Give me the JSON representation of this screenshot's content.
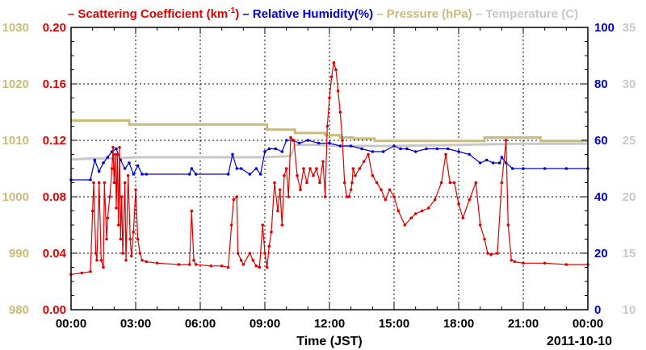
{
  "chart_data": {
    "type": "line",
    "legend": [
      {
        "text": "Scattering Coefficient (km",
        "sup": "-1",
        "tail": ")",
        "color": "#e00000"
      },
      {
        "text": "Relative Humidity(%)",
        "color": "#0000d0"
      },
      {
        "text": "Pressure (hPa)",
        "color": "#c8bc78"
      },
      {
        "text": "Temperature (C)",
        "color": "#c8c8c8"
      }
    ],
    "xlabel": "Time (JST)",
    "date_label": "2011-10-10",
    "x_ticks": [
      "00:00",
      "03:00",
      "06:00",
      "09:00",
      "12:00",
      "15:00",
      "18:00",
      "21:00",
      "00:00"
    ],
    "xlim_hours": [
      0,
      24
    ],
    "axes": {
      "pressure": {
        "ticks": [
          "980",
          "990",
          "1000",
          "1010",
          "1020",
          "1030"
        ],
        "lim": [
          980,
          1030
        ],
        "color": "#c8bc78"
      },
      "scattering": {
        "ticks": [
          "0.00",
          "0.04",
          "0.08",
          "0.12",
          "0.16",
          "0.20"
        ],
        "lim": [
          0,
          0.2
        ],
        "color": "#e00000"
      },
      "humidity": {
        "ticks": [
          "0",
          "20",
          "40",
          "60",
          "80",
          "100"
        ],
        "lim": [
          0,
          100
        ],
        "color": "#0000d0"
      },
      "temperature": {
        "ticks": [
          "10",
          "15",
          "20",
          "25",
          "30",
          "35"
        ],
        "lim": [
          10,
          35
        ],
        "color": "#c8c8c8"
      }
    },
    "series": [
      {
        "name": "Scattering Coefficient",
        "axis": "scattering",
        "color": "#e00000",
        "markers": true,
        "x": [
          0,
          0.5,
          0.9,
          1.0,
          1.05,
          1.15,
          1.2,
          1.3,
          1.4,
          1.5,
          1.55,
          1.65,
          1.7,
          1.8,
          1.9,
          1.95,
          2.0,
          2.05,
          2.1,
          2.15,
          2.2,
          2.25,
          2.3,
          2.35,
          2.4,
          2.5,
          2.55,
          2.65,
          2.75,
          2.8,
          2.9,
          3.0,
          3.1,
          3.2,
          3.3,
          3.5,
          4.0,
          5.0,
          5.5,
          5.6,
          5.7,
          5.8,
          6.5,
          7.0,
          7.3,
          7.45,
          7.55,
          7.7,
          7.75,
          7.9,
          8.0,
          8.3,
          8.45,
          8.6,
          8.75,
          8.9,
          9.0,
          9.1,
          9.2,
          9.3,
          9.45,
          9.6,
          9.7,
          9.8,
          9.9,
          10.0,
          10.1,
          10.2,
          10.35,
          10.5,
          10.65,
          10.8,
          10.95,
          11.1,
          11.25,
          11.4,
          11.55,
          11.7,
          11.8,
          11.9,
          12.0,
          12.1,
          12.2,
          12.3,
          12.4,
          12.5,
          12.6,
          12.7,
          12.8,
          12.9,
          13.0,
          13.05,
          13.1,
          13.2,
          13.4,
          13.6,
          13.8,
          14.0,
          14.2,
          14.4,
          14.6,
          14.8,
          15.0,
          15.2,
          15.5,
          15.8,
          16.0,
          16.3,
          16.6,
          16.9,
          17.2,
          17.4,
          17.6,
          17.8,
          18.0,
          18.2,
          18.5,
          18.8,
          19.0,
          19.2,
          19.35,
          19.5,
          19.8,
          20.0,
          20.2,
          20.3,
          20.45,
          20.6,
          21.0,
          22.0,
          23.0,
          24.0
        ],
        "values": [
          0.025,
          0.026,
          0.027,
          0.07,
          0.09,
          0.04,
          0.035,
          0.09,
          0.035,
          0.03,
          0.09,
          0.05,
          0.065,
          0.08,
          0.1,
          0.115,
          0.09,
          0.11,
          0.072,
          0.11,
          0.06,
          0.115,
          0.05,
          0.08,
          0.04,
          0.09,
          0.035,
          0.095,
          0.05,
          0.038,
          0.055,
          0.085,
          0.05,
          0.04,
          0.035,
          0.034,
          0.033,
          0.032,
          0.032,
          0.07,
          0.035,
          0.032,
          0.031,
          0.031,
          0.03,
          0.06,
          0.078,
          0.08,
          0.04,
          0.035,
          0.032,
          0.04,
          0.035,
          0.031,
          0.03,
          0.06,
          0.04,
          0.03,
          0.045,
          0.055,
          0.09,
          0.07,
          0.085,
          0.06,
          0.095,
          0.1,
          0.08,
          0.122,
          0.12,
          0.095,
          0.085,
          0.1,
          0.09,
          0.1,
          0.095,
          0.1,
          0.09,
          0.105,
          0.08,
          0.13,
          0.15,
          0.165,
          0.175,
          0.17,
          0.155,
          0.14,
          0.12,
          0.09,
          0.08,
          0.08,
          0.085,
          0.09,
          0.1,
          0.095,
          0.1,
          0.105,
          0.11,
          0.095,
          0.09,
          0.085,
          0.078,
          0.085,
          0.08,
          0.07,
          0.06,
          0.065,
          0.068,
          0.07,
          0.072,
          0.078,
          0.09,
          0.11,
          0.09,
          0.09,
          0.075,
          0.065,
          0.078,
          0.09,
          0.06,
          0.05,
          0.04,
          0.039,
          0.04,
          0.09,
          0.12,
          0.06,
          0.035,
          0.034,
          0.033,
          0.033,
          0.032,
          0.032
        ]
      },
      {
        "name": "Relative Humidity",
        "axis": "humidity",
        "color": "#0000d0",
        "markers": true,
        "x": [
          0,
          0.9,
          1.1,
          1.3,
          1.5,
          1.7,
          1.9,
          2.1,
          2.3,
          2.5,
          2.7,
          2.9,
          3.1,
          3.3,
          3.5,
          5.5,
          5.6,
          5.8,
          7.3,
          7.5,
          7.7,
          7.9,
          8.3,
          8.6,
          8.8,
          9.0,
          9.2,
          9.5,
          9.8,
          10.0,
          10.3,
          10.6,
          11.0,
          11.5,
          12.0,
          12.5,
          13.0,
          13.5,
          14.0,
          14.5,
          15.0,
          15.3,
          15.6,
          16.0,
          16.5,
          17.0,
          17.5,
          18.0,
          18.5,
          19.0,
          19.3,
          19.6,
          19.9,
          20.0,
          20.2,
          20.5,
          21.0,
          22.0,
          23.0,
          24.0
        ],
        "values": [
          46,
          46,
          53,
          49,
          52,
          54,
          56,
          57,
          53,
          50,
          52,
          48,
          51,
          48,
          48,
          48,
          50,
          48,
          48,
          55,
          50,
          50,
          48,
          50,
          48,
          56,
          57,
          57,
          56,
          60,
          60,
          59,
          60,
          59,
          59,
          58,
          58,
          57,
          56,
          56,
          58,
          57,
          57,
          56,
          57,
          57,
          57,
          56,
          55,
          52,
          53,
          52,
          52,
          54,
          52,
          50,
          50,
          50,
          50,
          50
        ]
      },
      {
        "name": "Pressure",
        "axis": "pressure",
        "color": "#c8bc78",
        "markers": false,
        "step": true,
        "x": [
          0,
          2.7,
          9.1,
          10.4,
          11.8,
          12.5,
          13.1,
          14.1,
          19.2,
          21.8,
          24.0
        ],
        "values": [
          1013.5,
          1012.8,
          1011.9,
          1011.3,
          1010.9,
          1010.5,
          1010.3,
          1009.9,
          1010.5,
          1009.9,
          1009.9
        ]
      },
      {
        "name": "Temperature",
        "axis": "temperature",
        "color": "#c8c8c8",
        "markers": false,
        "x": [
          0,
          1.0,
          2.0,
          3.0,
          6.0,
          9.0,
          10.2,
          10.4,
          11.5,
          12.5,
          13.5,
          15.0,
          18.0,
          21.0,
          24.0
        ],
        "values": [
          23.3,
          23.4,
          23.4,
          23.5,
          23.5,
          23.5,
          23.6,
          24.6,
          24.6,
          24.5,
          24.5,
          24.5,
          24.6,
          24.7,
          24.7
        ]
      }
    ]
  }
}
